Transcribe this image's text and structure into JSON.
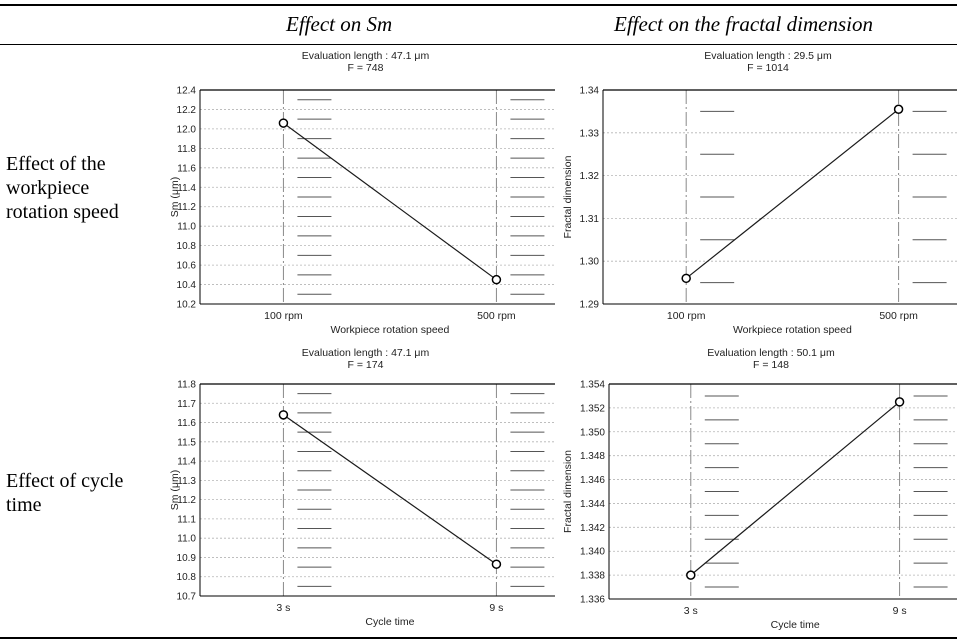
{
  "header": {
    "col1": "Effect on Sm",
    "col2": "Effect on the fractal dimension"
  },
  "rows": [
    {
      "label_lines": [
        "Effect of the",
        "workpiece",
        "rotation speed"
      ]
    },
    {
      "label_lines": [
        "Effect of cycle",
        "time"
      ]
    }
  ],
  "chart_data": [
    {
      "type": "line",
      "title": "Evaluation length : 47.1 μm",
      "subtitle": "F = 748",
      "xlabel": "Workpiece rotation speed",
      "ylabel": "Sm (μm)",
      "categories": [
        "100 rpm",
        "500 rpm"
      ],
      "values": [
        12.06,
        10.45
      ],
      "ylim": [
        10.2,
        12.4
      ],
      "yticks": [
        "10.2",
        "10.4",
        "10.6",
        "10.8",
        "11.0",
        "11.2",
        "11.4",
        "11.6",
        "11.8",
        "12.0",
        "12.2",
        "12.4"
      ],
      "grid": true
    },
    {
      "type": "line",
      "title": "Evaluation length : 29.5 μm",
      "subtitle": "F = 1014",
      "xlabel": "Workpiece rotation speed",
      "ylabel": "Fractal dimension",
      "categories": [
        "100 rpm",
        "500 rpm"
      ],
      "values": [
        1.296,
        1.3355
      ],
      "ylim": [
        1.29,
        1.34
      ],
      "yticks": [
        "1.29",
        "1.30",
        "1.31",
        "1.32",
        "1.33",
        "1.34"
      ],
      "grid": true
    },
    {
      "type": "line",
      "title": "Evaluation length : 47.1 μm",
      "subtitle": "F = 174",
      "xlabel": "Cycle time",
      "ylabel": "Sm (μm)",
      "categories": [
        "3 s",
        "9 s"
      ],
      "values": [
        11.64,
        10.865
      ],
      "ylim": [
        10.7,
        11.8
      ],
      "yticks": [
        "10.7",
        "10.8",
        "10.9",
        "11.0",
        "11.1",
        "11.2",
        "11.3",
        "11.4",
        "11.5",
        "11.6",
        "11.7",
        "11.8"
      ],
      "grid": true
    },
    {
      "type": "line",
      "title": "Evaluation length : 50.1 μm",
      "subtitle": "F = 148",
      "xlabel": "Cycle time",
      "ylabel": "Fractal dimension",
      "categories": [
        "3 s",
        "9 s"
      ],
      "values": [
        1.338,
        1.3525
      ],
      "ylim": [
        1.336,
        1.354
      ],
      "yticks": [
        "1.336",
        "1.338",
        "1.340",
        "1.342",
        "1.344",
        "1.346",
        "1.348",
        "1.350",
        "1.352",
        "1.354"
      ],
      "grid": true
    }
  ]
}
